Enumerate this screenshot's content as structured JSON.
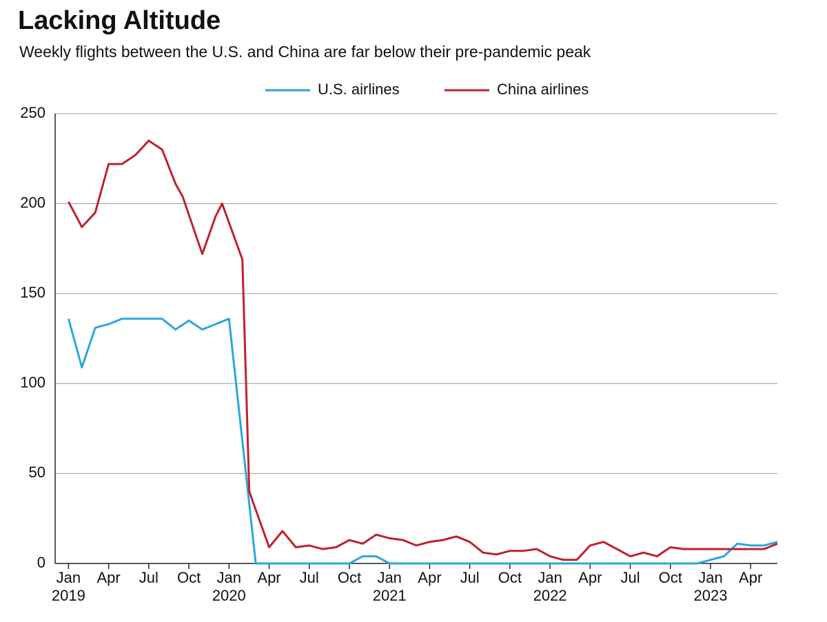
{
  "chart_data": {
    "type": "line",
    "title": "Lacking Altitude",
    "subtitle": "Weekly flights between the U.S. and China are far below their pre-pandemic peak",
    "xlim": [
      "2018-12-01",
      "2023-06-01"
    ],
    "xticks": [
      {
        "value": "2019-01-01",
        "label": "Jan"
      },
      {
        "value": "2019-04-01",
        "label": "Apr"
      },
      {
        "value": "2019-07-01",
        "label": "Jul"
      },
      {
        "value": "2019-10-01",
        "label": "Oct"
      },
      {
        "value": "2020-01-01",
        "label": "Jan"
      },
      {
        "value": "2020-04-01",
        "label": "Apr"
      },
      {
        "value": "2020-07-01",
        "label": "Jul"
      },
      {
        "value": "2020-10-01",
        "label": "Oct"
      },
      {
        "value": "2021-01-01",
        "label": "Jan"
      },
      {
        "value": "2021-04-01",
        "label": "Apr"
      },
      {
        "value": "2021-07-01",
        "label": "Jul"
      },
      {
        "value": "2021-10-01",
        "label": "Oct"
      },
      {
        "value": "2022-01-01",
        "label": "Jan"
      },
      {
        "value": "2022-04-01",
        "label": "Apr"
      },
      {
        "value": "2022-07-01",
        "label": "Jul"
      },
      {
        "value": "2022-10-01",
        "label": "Oct"
      },
      {
        "value": "2023-01-01",
        "label": "Jan"
      },
      {
        "value": "2023-04-01",
        "label": "Apr"
      }
    ],
    "year_labels": [
      {
        "value": "2019-01-01",
        "label": "2019"
      },
      {
        "value": "2020-01-01",
        "label": "2020"
      },
      {
        "value": "2021-01-01",
        "label": "2021"
      },
      {
        "value": "2022-01-01",
        "label": "2022"
      },
      {
        "value": "2023-01-01",
        "label": "2023"
      }
    ],
    "ylim": [
      0,
      250
    ],
    "yticks": [
      0,
      50,
      100,
      150,
      200,
      250
    ],
    "grid": true,
    "legend": "top",
    "series": [
      {
        "name": "U.S. airlines",
        "color": "#2ba6dc",
        "x": [
          "2019-01-01",
          "2019-02-01",
          "2019-03-01",
          "2019-04-01",
          "2019-05-01",
          "2019-06-01",
          "2019-07-01",
          "2019-08-01",
          "2019-09-01",
          "2019-10-01",
          "2019-11-01",
          "2019-12-01",
          "2020-01-01",
          "2020-03-01",
          "2020-10-01",
          "2020-11-01",
          "2020-12-01",
          "2021-01-01",
          "2022-12-01",
          "2023-01-01",
          "2023-02-01",
          "2023-03-01",
          "2023-04-01",
          "2023-05-01",
          "2023-06-01"
        ],
        "values": [
          136,
          109,
          131,
          133,
          136,
          136,
          136,
          136,
          130,
          135,
          130,
          133,
          136,
          0,
          0,
          4,
          4,
          0,
          0,
          2,
          4,
          11,
          10,
          10,
          12
        ]
      },
      {
        "name": "China airlines",
        "color": "#c0202f",
        "x": [
          "2019-01-01",
          "2019-02-01",
          "2019-03-01",
          "2019-04-01",
          "2019-05-01",
          "2019-06-01",
          "2019-07-01",
          "2019-08-01",
          "2019-09-01",
          "2019-09-17",
          "2019-11-01",
          "2019-12-01",
          "2019-12-16",
          "2020-02-01",
          "2020-02-16",
          "2020-04-01",
          "2020-05-01",
          "2020-06-01",
          "2020-07-01",
          "2020-08-01",
          "2020-09-01",
          "2020-10-01",
          "2020-11-01",
          "2020-12-01",
          "2021-01-01",
          "2021-02-01",
          "2021-03-01",
          "2021-04-01",
          "2021-05-01",
          "2021-06-01",
          "2021-07-01",
          "2021-08-01",
          "2021-09-01",
          "2021-10-01",
          "2021-11-01",
          "2021-12-01",
          "2022-01-01",
          "2022-02-01",
          "2022-03-01",
          "2022-04-01",
          "2022-05-01",
          "2022-06-01",
          "2022-07-01",
          "2022-08-01",
          "2022-09-01",
          "2022-10-01",
          "2022-11-01",
          "2022-12-01",
          "2023-01-01",
          "2023-02-01",
          "2023-03-01",
          "2023-04-01",
          "2023-05-01",
          "2023-06-01"
        ],
        "values": [
          201,
          187,
          195,
          222,
          222,
          227,
          235,
          230,
          211,
          204,
          172,
          193,
          200,
          169,
          40,
          9,
          18,
          9,
          10,
          8,
          9,
          13,
          11,
          16,
          14,
          13,
          10,
          12,
          13,
          15,
          12,
          6,
          5,
          7,
          7,
          8,
          4,
          2,
          2,
          10,
          12,
          8,
          4,
          6,
          4,
          9,
          8,
          8,
          8,
          8,
          8,
          8,
          8,
          11
        ]
      }
    ]
  }
}
